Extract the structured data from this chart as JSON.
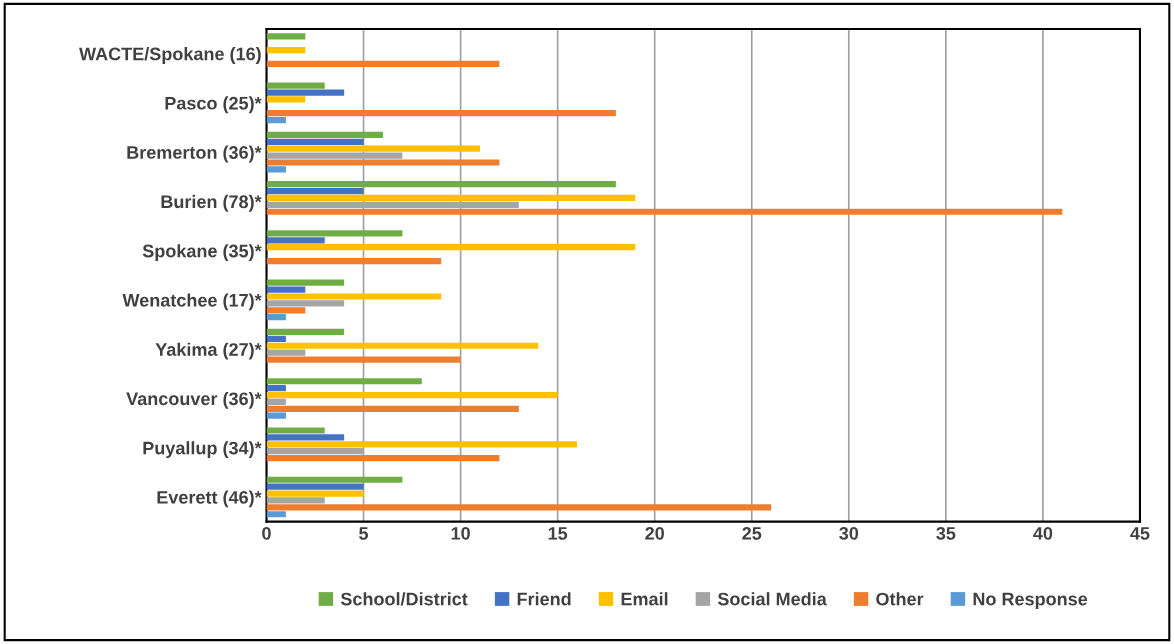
{
  "chart_data": {
    "type": "bar",
    "orientation": "horizontal",
    "categories": [
      "WACTE/Spokane (16)",
      "Pasco (25)*",
      "Bremerton (36)*",
      "Burien (78)*",
      "Spokane (35)*",
      "Wenatchee (17)*",
      "Yakima (27)*",
      "Vancouver (36)*",
      "Puyallup (34)*",
      "Everett (46)*"
    ],
    "series": [
      {
        "name": "School/District",
        "color": "#70ad47",
        "values": [
          2,
          3,
          6,
          18,
          7,
          4,
          4,
          8,
          3,
          7
        ]
      },
      {
        "name": "Friend",
        "color": "#4472c4",
        "values": [
          0,
          4,
          5,
          5,
          3,
          2,
          1,
          1,
          4,
          5
        ]
      },
      {
        "name": "Email",
        "color": "#ffc000",
        "values": [
          2,
          2,
          11,
          19,
          19,
          9,
          14,
          15,
          16,
          5
        ]
      },
      {
        "name": "Social Media",
        "color": "#a5a5a5",
        "values": [
          0,
          0,
          7,
          13,
          0,
          4,
          2,
          1,
          5,
          3
        ]
      },
      {
        "name": "Other",
        "color": "#ed7d31",
        "values": [
          12,
          18,
          12,
          41,
          9,
          2,
          10,
          13,
          12,
          26
        ]
      },
      {
        "name": "No Response",
        "color": "#5b9bd5",
        "values": [
          0,
          1,
          1,
          0,
          0,
          1,
          0,
          1,
          0,
          1
        ]
      }
    ],
    "xlim": [
      0,
      45
    ],
    "xticks": [
      0,
      5,
      10,
      15,
      20,
      25,
      30,
      35,
      40,
      45
    ],
    "grid": "x",
    "legend": "bottom"
  }
}
